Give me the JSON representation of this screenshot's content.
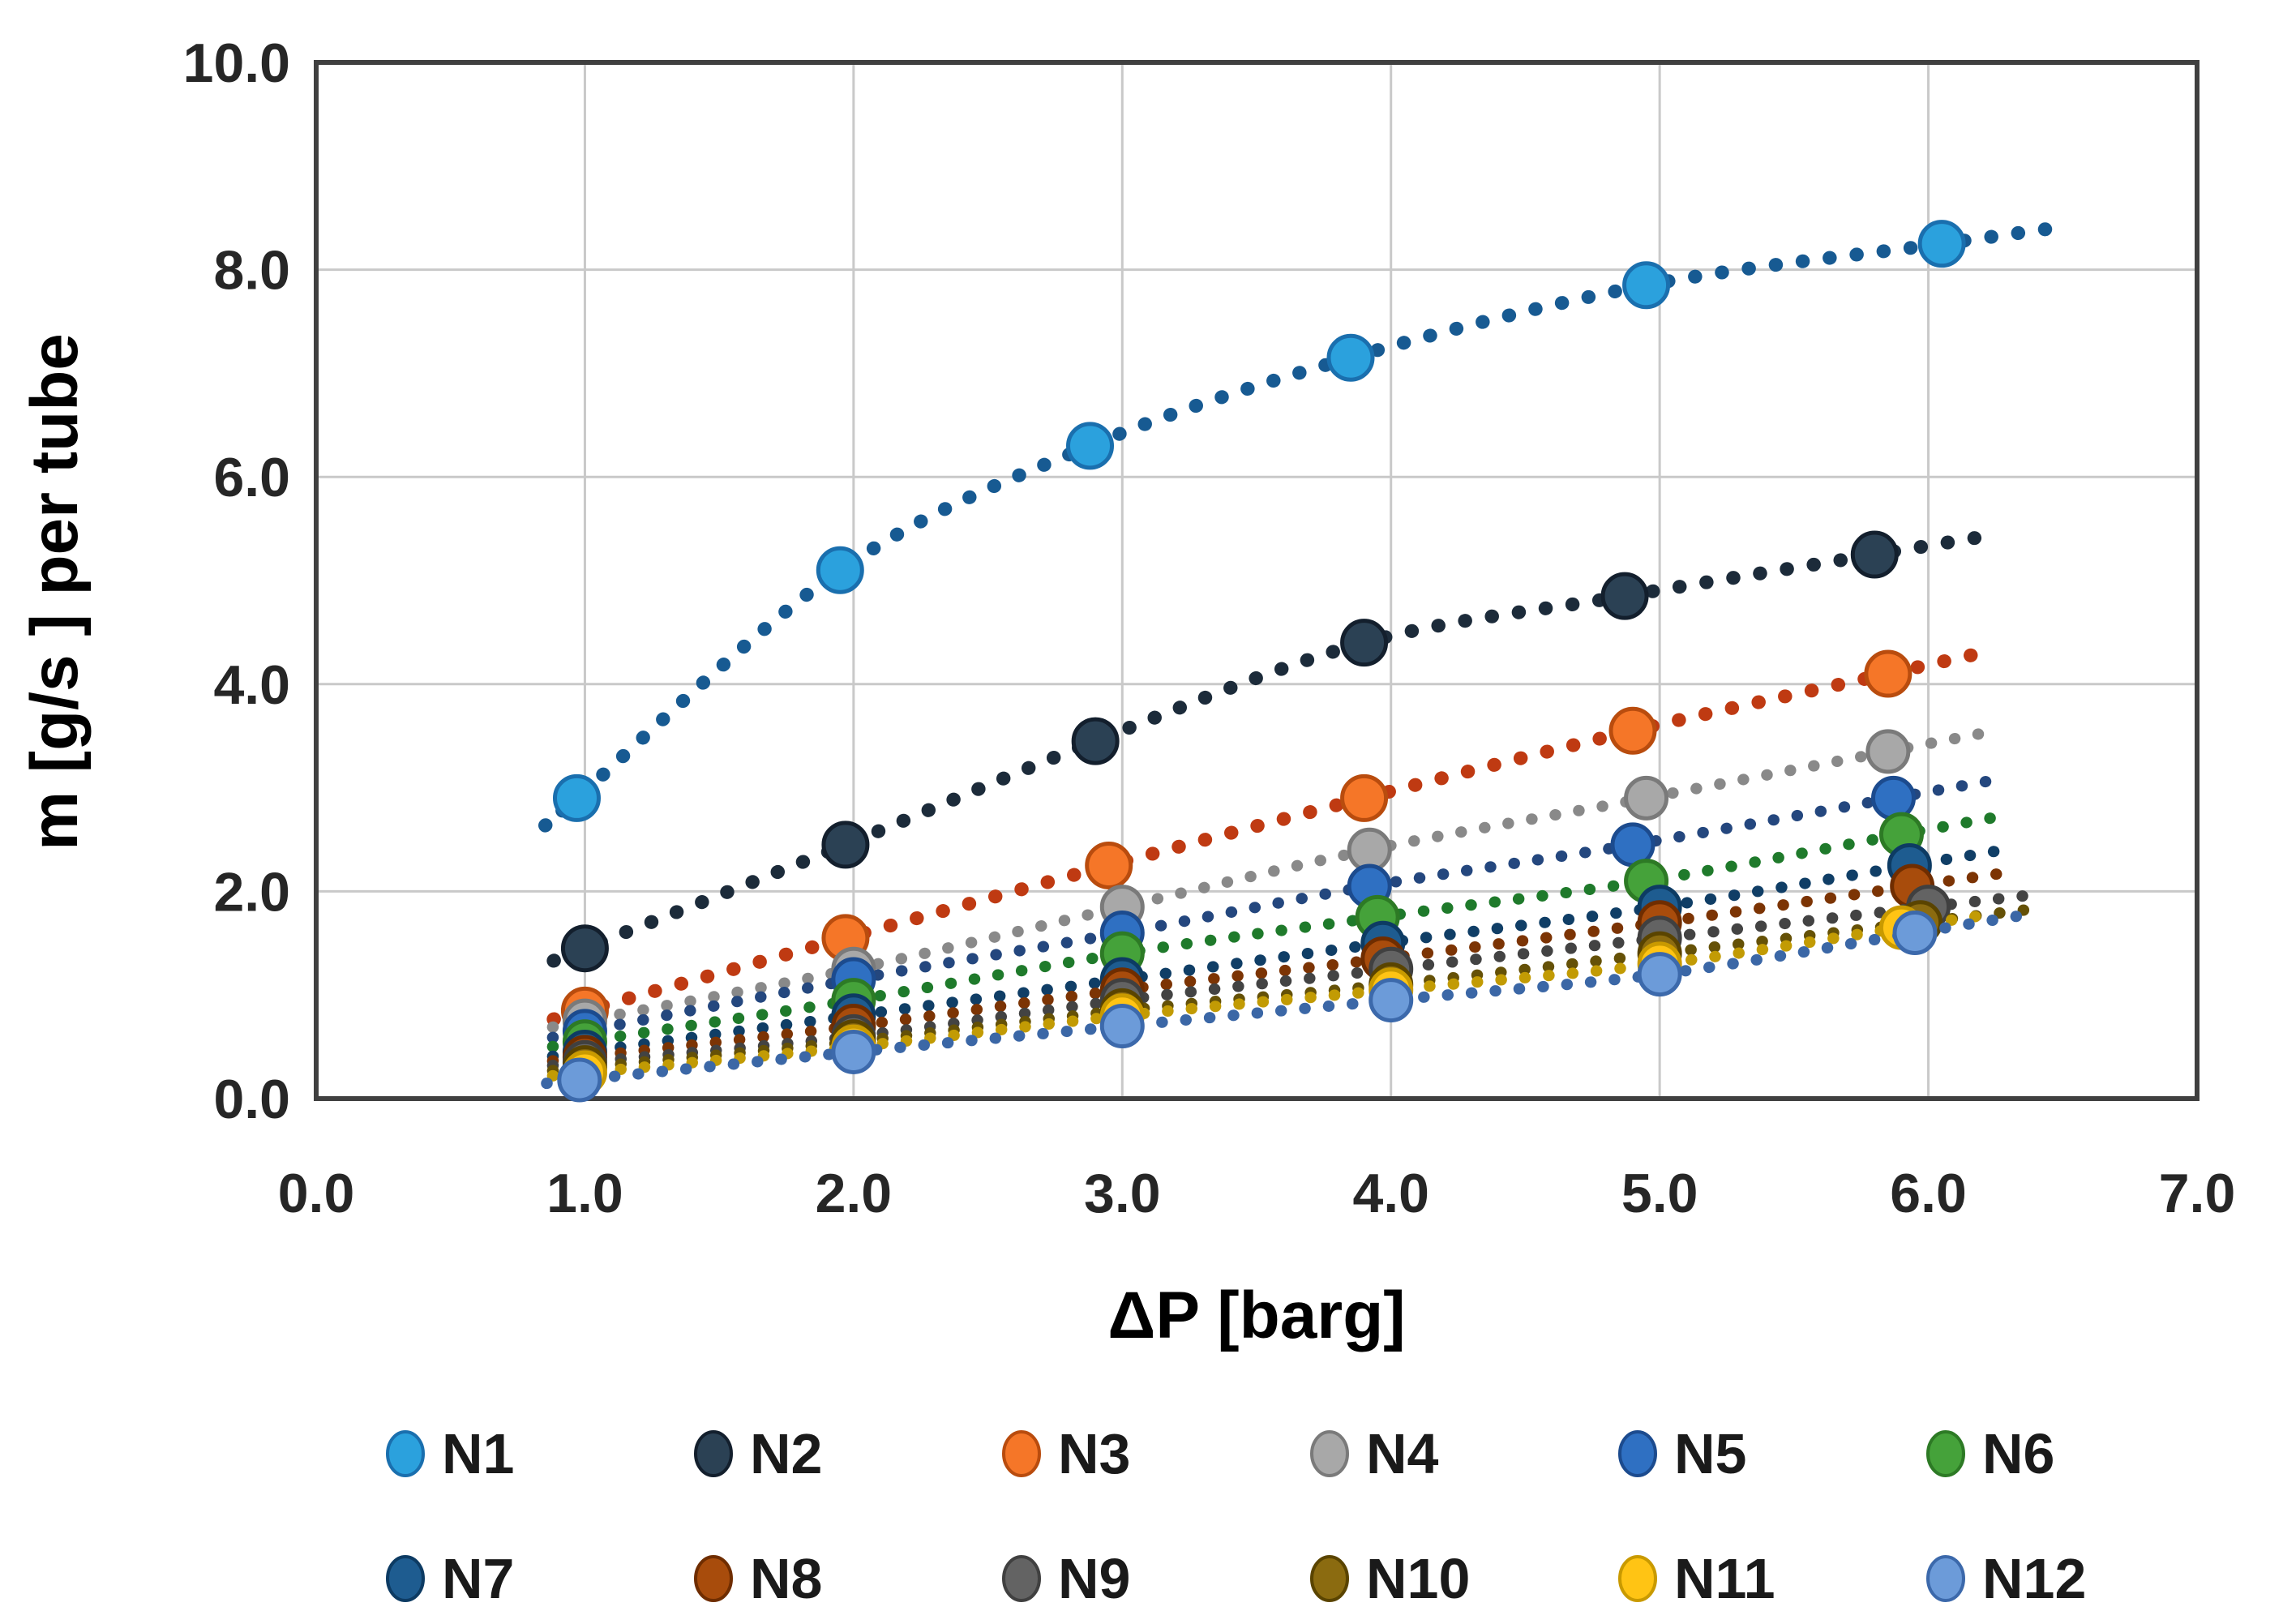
{
  "chart_data": {
    "type": "scatter",
    "title": "",
    "xlabel": "ΔP [barg]",
    "ylabel": "m [g/s ] per tube",
    "xlim": [
      0,
      7
    ],
    "ylim": [
      0,
      10
    ],
    "grid": true,
    "legend_position": "bottom",
    "x_ticks": {
      "values": [
        0,
        1,
        2,
        3,
        4,
        5,
        6,
        7
      ],
      "labels": [
        "0.0",
        "1.0",
        "2.0",
        "3.0",
        "4.0",
        "5.0",
        "6.0",
        "7.0"
      ]
    },
    "y_ticks": {
      "values": [
        0,
        2,
        4,
        6,
        8,
        10
      ],
      "labels": [
        "0.0",
        "2.0",
        "4.0",
        "6.0",
        "8.0",
        "10.0"
      ]
    },
    "colors": {
      "background": "#ffffff",
      "gridline": "#c9c9c9",
      "plot_border": "#404040",
      "tick_label": "#262626",
      "axis_title": "#000000",
      "legend_label": "#1a1a1a"
    },
    "series": [
      {
        "name": "N1",
        "marker_color": "#2ba1dd",
        "marker_edge": "#1a6fae",
        "line_color": "#175a92",
        "x": [
          0.97,
          1.95,
          2.88,
          3.85,
          4.95,
          6.05
        ],
        "y": [
          2.9,
          5.1,
          6.3,
          7.15,
          7.85,
          8.25
        ]
      },
      {
        "name": "N2",
        "marker_color": "#2b4154",
        "marker_edge": "#131f2d",
        "line_color": "#1c2b3a",
        "x": [
          1.0,
          1.97,
          2.9,
          3.9,
          4.87,
          5.8
        ],
        "y": [
          1.45,
          2.45,
          3.45,
          4.4,
          4.85,
          5.25
        ]
      },
      {
        "name": "N3",
        "marker_color": "#f57628",
        "marker_edge": "#b94c0e",
        "line_color": "#bf3a12",
        "x": [
          1.0,
          1.97,
          2.95,
          3.9,
          4.9,
          5.85
        ],
        "y": [
          0.85,
          1.55,
          2.25,
          2.9,
          3.55,
          4.1
        ]
      },
      {
        "name": "N4",
        "marker_color": "#a8a8a8",
        "marker_edge": "#7a7a7a",
        "line_color": "#898989",
        "x": [
          1.0,
          2.0,
          3.0,
          3.92,
          4.95,
          5.85
        ],
        "y": [
          0.75,
          1.25,
          1.85,
          2.4,
          2.9,
          3.35
        ]
      },
      {
        "name": "N5",
        "marker_color": "#2f70c2",
        "marker_edge": "#1c4b8e",
        "line_color": "#24477e",
        "x": [
          1.0,
          2.0,
          3.0,
          3.92,
          4.9,
          5.87
        ],
        "y": [
          0.65,
          1.15,
          1.6,
          2.05,
          2.45,
          2.9
        ]
      },
      {
        "name": "N6",
        "marker_color": "#45a23a",
        "marker_edge": "#2d7a25",
        "line_color": "#1f7a2b",
        "x": [
          1.0,
          2.0,
          3.0,
          3.95,
          4.95,
          5.9
        ],
        "y": [
          0.55,
          0.95,
          1.4,
          1.75,
          2.1,
          2.55
        ]
      },
      {
        "name": "N7",
        "marker_color": "#1e5c90",
        "marker_edge": "#0d3b63",
        "line_color": "#103e66",
        "x": [
          1.0,
          2.0,
          3.0,
          3.97,
          5.0,
          5.93
        ],
        "y": [
          0.45,
          0.8,
          1.15,
          1.5,
          1.85,
          2.25
        ]
      },
      {
        "name": "N8",
        "marker_color": "#a84c0c",
        "marker_edge": "#6f2d00",
        "line_color": "#7c3404",
        "x": [
          1.0,
          2.0,
          3.0,
          3.97,
          5.0,
          5.94
        ],
        "y": [
          0.4,
          0.7,
          1.05,
          1.35,
          1.7,
          2.05
        ]
      },
      {
        "name": "N9",
        "marker_color": "#636363",
        "marker_edge": "#404040",
        "line_color": "#434343",
        "x": [
          1.0,
          2.0,
          3.0,
          4.0,
          5.0,
          6.0
        ],
        "y": [
          0.35,
          0.6,
          0.95,
          1.25,
          1.55,
          1.85
        ]
      },
      {
        "name": "N10",
        "marker_color": "#8b6b10",
        "marker_edge": "#5a4400",
        "line_color": "#655107",
        "x": [
          1.0,
          2.0,
          3.0,
          4.0,
          5.0,
          5.97
        ],
        "y": [
          0.3,
          0.55,
          0.85,
          1.1,
          1.4,
          1.7
        ]
      },
      {
        "name": "N11",
        "marker_color": "#ffc414",
        "marker_edge": "#c99a00",
        "line_color": "#c29b04",
        "x": [
          1.0,
          2.0,
          3.0,
          4.0,
          5.0,
          5.9
        ],
        "y": [
          0.25,
          0.5,
          0.8,
          1.05,
          1.3,
          1.65
        ]
      },
      {
        "name": "N12",
        "marker_color": "#6c9bd9",
        "marker_edge": "#3c69ab",
        "line_color": "#3b67a6",
        "x": [
          0.98,
          2.0,
          3.0,
          4.0,
          5.0,
          5.95
        ],
        "y": [
          0.18,
          0.45,
          0.7,
          0.95,
          1.2,
          1.6
        ]
      }
    ]
  },
  "legend": {
    "rows": [
      [
        "N1",
        "N2",
        "N3",
        "N4",
        "N5",
        "N6"
      ],
      [
        "N7",
        "N8",
        "N9",
        "N10",
        "N11",
        "N12"
      ]
    ]
  }
}
